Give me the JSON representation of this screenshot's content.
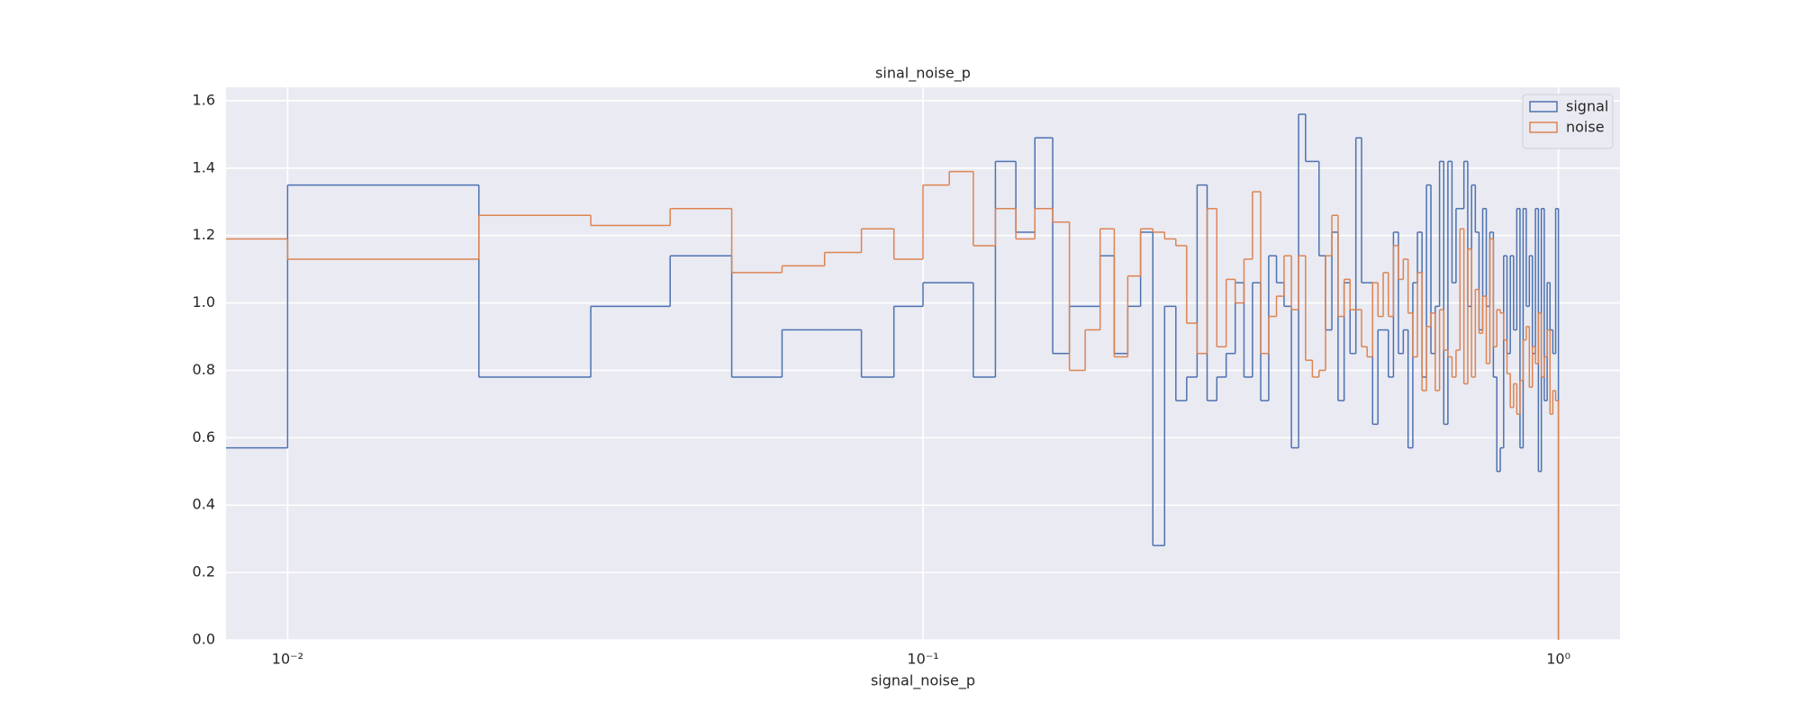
{
  "chart_data": {
    "type": "histogram",
    "title": "sinal_noise_p",
    "xlabel": "signal_noise_p",
    "xscale": "log",
    "grid": true,
    "legend": "upper right",
    "bins": [
      0,
      0.01,
      0.02,
      0.03,
      0.04,
      0.05,
      0.06,
      0.07,
      0.08,
      0.09,
      0.1,
      0.11,
      0.12,
      0.13,
      0.14,
      0.15,
      0.16,
      0.17,
      0.18,
      0.19,
      0.2,
      0.21,
      0.22,
      0.23,
      0.24,
      0.25,
      0.26,
      0.27,
      0.28,
      0.29,
      0.3,
      0.31,
      0.32,
      0.33,
      0.34,
      0.35,
      0.36,
      0.37,
      0.38,
      0.39,
      0.4,
      0.41,
      0.42,
      0.43,
      0.44,
      0.45,
      0.46,
      0.47,
      0.48,
      0.49,
      0.5,
      0.51,
      0.52,
      0.53,
      0.54,
      0.55,
      0.56,
      0.57,
      0.58,
      0.59,
      0.6,
      0.61,
      0.62,
      0.63,
      0.64,
      0.65,
      0.66,
      0.67,
      0.68,
      0.69,
      0.7,
      0.71,
      0.72,
      0.73,
      0.74,
      0.75,
      0.76,
      0.77,
      0.78,
      0.79,
      0.8,
      0.81,
      0.82,
      0.83,
      0.84,
      0.85,
      0.86,
      0.87,
      0.88,
      0.89,
      0.9,
      0.91,
      0.92,
      0.93,
      0.94,
      0.95,
      0.96,
      0.97,
      0.98,
      0.99,
      1.0
    ],
    "series": [
      {
        "name": "signal",
        "color": "#4c72b0",
        "values": [
          0.57,
          1.35,
          0.78,
          0.99,
          1.14,
          0.78,
          0.92,
          0.92,
          0.78,
          0.99,
          1.06,
          1.06,
          0.78,
          1.42,
          1.21,
          1.49,
          0.85,
          0.99,
          0.99,
          1.14,
          0.85,
          0.99,
          1.21,
          0.28,
          0.99,
          0.71,
          0.78,
          1.35,
          0.71,
          0.78,
          0.85,
          1.06,
          0.78,
          1.06,
          0.71,
          1.14,
          1.06,
          0.99,
          0.57,
          1.56,
          1.42,
          1.42,
          1.14,
          0.92,
          1.21,
          0.71,
          1.06,
          0.85,
          1.49,
          1.06,
          1.06,
          0.64,
          0.92,
          0.92,
          0.78,
          1.21,
          0.85,
          0.92,
          0.57,
          1.06,
          1.21,
          0.78,
          1.35,
          0.85,
          0.99,
          1.42,
          0.64,
          1.42,
          1.06,
          1.28,
          1.28,
          1.42,
          0.99,
          1.35,
          1.21,
          0.92,
          1.28,
          0.99,
          1.21,
          0.78,
          0.5,
          0.57,
          1.14,
          0.85,
          1.14,
          0.92,
          1.28,
          0.57,
          1.28,
          0.99,
          1.14,
          0.85,
          1.28,
          0.5,
          1.28,
          0.71,
          1.06,
          0.92,
          0.85,
          1.28
        ]
      },
      {
        "name": "noise",
        "color": "#dd8452",
        "values": [
          1.19,
          1.13,
          1.26,
          1.23,
          1.28,
          1.09,
          1.11,
          1.15,
          1.22,
          1.13,
          1.35,
          1.39,
          1.17,
          1.28,
          1.19,
          1.28,
          1.24,
          0.8,
          0.92,
          1.22,
          0.84,
          1.08,
          1.22,
          1.21,
          1.19,
          1.17,
          0.94,
          0.85,
          1.28,
          0.87,
          1.07,
          1.0,
          1.13,
          1.33,
          0.85,
          0.96,
          1.02,
          1.14,
          0.98,
          1.14,
          0.83,
          0.78,
          0.8,
          1.14,
          1.26,
          0.96,
          1.07,
          0.98,
          0.98,
          0.87,
          0.84,
          1.06,
          0.96,
          1.09,
          0.96,
          1.17,
          1.07,
          1.13,
          0.97,
          0.84,
          1.09,
          0.74,
          0.93,
          0.97,
          0.74,
          0.98,
          0.86,
          0.84,
          0.78,
          0.86,
          1.22,
          0.76,
          1.16,
          0.78,
          1.04,
          0.91,
          1.02,
          0.82,
          1.19,
          0.87,
          0.98,
          0.97,
          0.89,
          0.79,
          0.69,
          0.76,
          0.67,
          0.77,
          0.89,
          0.93,
          0.75,
          0.87,
          0.82,
          0.97,
          0.78,
          0.84,
          0.92,
          0.67,
          0.74,
          0.71
        ]
      }
    ],
    "xlim": [
      0.008,
      1.25
    ],
    "ylim": [
      0,
      1.64
    ],
    "xticks": [
      {
        "value": 0.01,
        "label": "10⁻²"
      },
      {
        "value": 0.1,
        "label": "10⁻¹"
      },
      {
        "value": 1,
        "label": "10⁰"
      }
    ],
    "yticks": [
      {
        "value": 0,
        "label": "0.0"
      },
      {
        "value": 0.2,
        "label": "0.2"
      },
      {
        "value": 0.4,
        "label": "0.4"
      },
      {
        "value": 0.6,
        "label": "0.6"
      },
      {
        "value": 0.8,
        "label": "0.8"
      },
      {
        "value": 1,
        "label": "1.0"
      },
      {
        "value": 1.2,
        "label": "1.2"
      },
      {
        "value": 1.4,
        "label": "1.4"
      },
      {
        "value": 1.6,
        "label": "1.6"
      }
    ]
  }
}
